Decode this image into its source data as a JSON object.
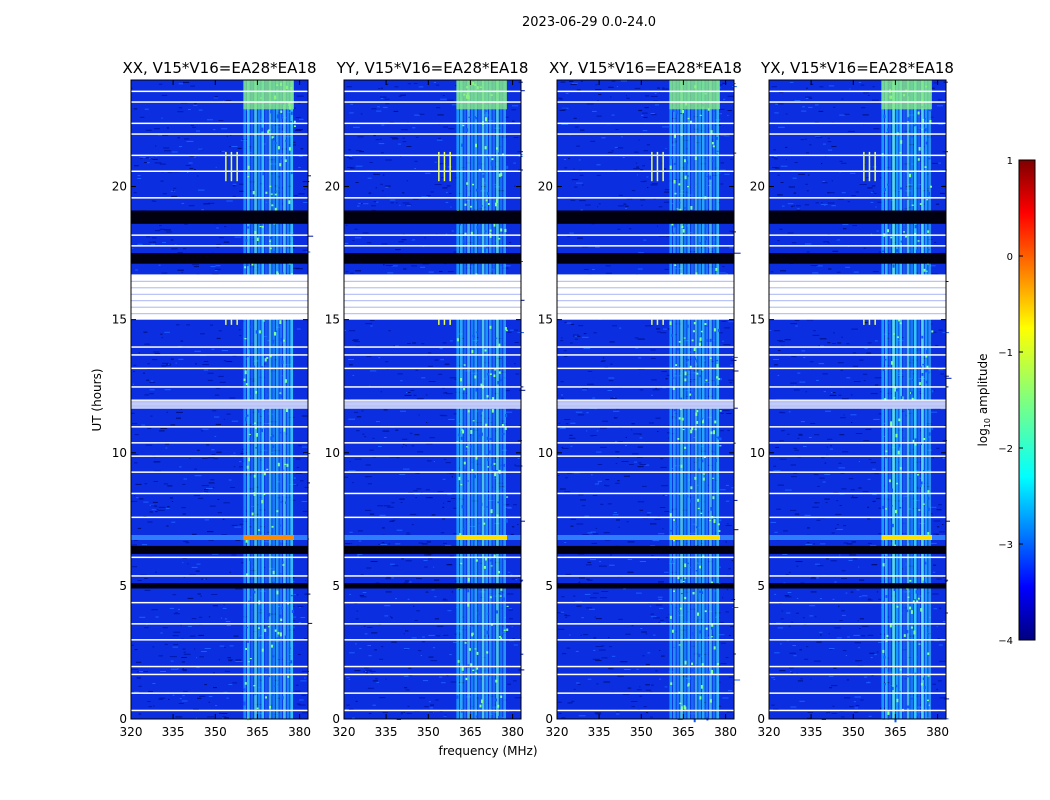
{
  "chart_data": {
    "type": "heatmap",
    "title": "2023-06-29 0.0-24.0",
    "xlabel": "frequency (MHz)",
    "ylabel": "UT (hours)",
    "xlim": [
      320,
      383
    ],
    "ylim": [
      0,
      24
    ],
    "xticks": [
      320,
      335,
      350,
      365,
      380
    ],
    "yticks": [
      0,
      5,
      10,
      15,
      20
    ],
    "panels": [
      {
        "title": "XX, V15*V16=EA28*EA18"
      },
      {
        "title": "YY, V15*V16=EA28*EA18"
      },
      {
        "title": "XY, V15*V16=EA28*EA18"
      },
      {
        "title": "YX, V15*V16=EA28*EA18"
      }
    ],
    "colorbar": {
      "label": "log",
      "label_sub": "10",
      "label_rest": " amplitude",
      "min": -4,
      "max": 1,
      "ticks": [
        "1",
        "0",
        "−1",
        "−2",
        "−3",
        "−4"
      ]
    },
    "rfi_band_mhz": [
      360,
      378
    ],
    "flagged_white_hours": [
      [
        15.0,
        16.7
      ],
      [
        11.65,
        12.0
      ]
    ],
    "flagged_black_hours": [
      [
        18.6,
        19.1
      ],
      [
        17.1,
        17.5
      ],
      [
        6.2,
        6.5
      ],
      [
        4.9,
        5.1
      ]
    ],
    "strong_event_hour": 6.8
  }
}
